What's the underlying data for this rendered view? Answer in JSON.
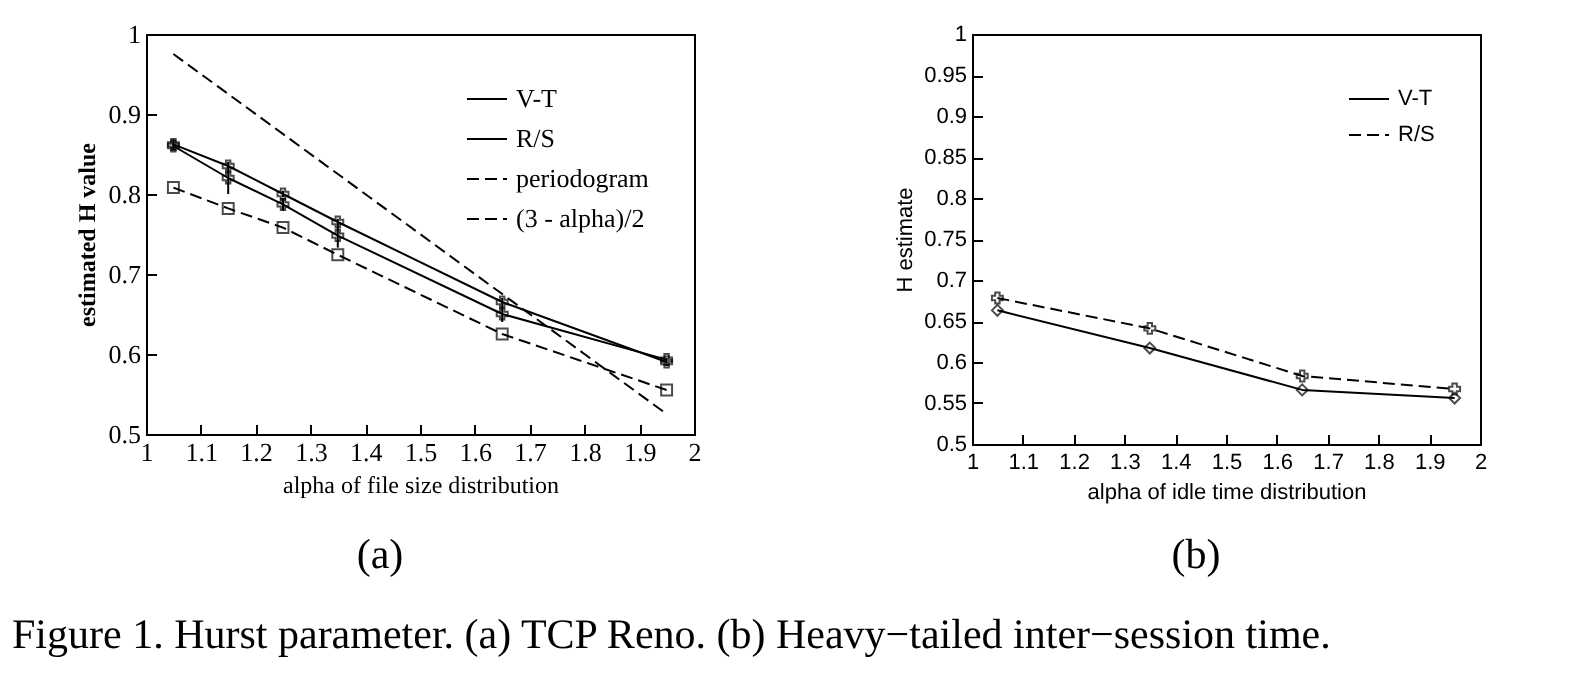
{
  "chart_data": [
    {
      "type": "line",
      "xlabel": "alpha of file size distribution",
      "ylabel": "estimated H value",
      "x": [
        1.05,
        1.15,
        1.25,
        1.35,
        1.65,
        1.95
      ],
      "xlim": [
        1,
        2
      ],
      "xticks": [
        1,
        1.1,
        1.2,
        1.3,
        1.4,
        1.5,
        1.6,
        1.7,
        1.8,
        1.9,
        2
      ],
      "ylim": [
        0.5,
        1
      ],
      "yticks": [
        0.5,
        0.6,
        0.7,
        0.8,
        0.9,
        1
      ],
      "grid": false,
      "legend": "top right",
      "annotations": [
        "(a)",
        "Figure 1. Hurst parameter. (a) TCP Reno.  (b) Heavy−tailed inter−session time."
      ],
      "series": [
        {
          "name": "V-T",
          "color": "#000000",
          "values": [
            0.862,
            0.835,
            0.8,
            0.765,
            0.665,
            0.59
          ],
          "errors": [
            0.006,
            0.004,
            0.004,
            0.004,
            0.005,
            0.005
          ],
          "marker": "cross",
          "line_style": "solid"
        },
        {
          "name": "R/S",
          "color": "#000000",
          "values": [
            0.86,
            0.82,
            0.787,
            0.748,
            0.65,
            0.593
          ],
          "errors": [
            0.005,
            0.02,
            0.008,
            0.015,
            0.01,
            null
          ],
          "marker": "cross",
          "line_style": "solid"
        },
        {
          "name": "periodogram",
          "color": "#000000",
          "values": [
            0.808,
            0.782,
            0.758,
            0.724,
            0.625,
            0.555
          ],
          "marker": "square",
          "line_style": "dashed"
        },
        {
          "name": "(3 - alpha)/2",
          "color": "#000000",
          "x": [
            1.05,
            1.95
          ],
          "values": [
            0.975,
            0.525
          ],
          "marker": "none",
          "line_style": "dashed"
        }
      ]
    },
    {
      "type": "line",
      "xlabel": "alpha of idle time distribution",
      "ylabel": "H estimate",
      "x": [
        1.05,
        1.35,
        1.65,
        1.95
      ],
      "xlim": [
        1,
        2
      ],
      "xticks": [
        1,
        1.1,
        1.2,
        1.3,
        1.4,
        1.5,
        1.6,
        1.7,
        1.8,
        1.9,
        2
      ],
      "ylim": [
        0.5,
        1
      ],
      "yticks": [
        0.5,
        0.55,
        0.6,
        0.65,
        0.7,
        0.75,
        0.8,
        0.85,
        0.9,
        0.95,
        1
      ],
      "grid": false,
      "legend": "top right",
      "annotations": [
        "(b)"
      ],
      "series": [
        {
          "name": "V-T",
          "color": "#000000",
          "values": [
            0.663,
            0.617,
            0.566,
            0.556
          ],
          "marker": "diamond",
          "line_style": "solid"
        },
        {
          "name": "R/S",
          "color": "#000000",
          "values": [
            0.678,
            0.641,
            0.583,
            0.567
          ],
          "marker": "cross",
          "line_style": "dashed"
        }
      ]
    }
  ]
}
